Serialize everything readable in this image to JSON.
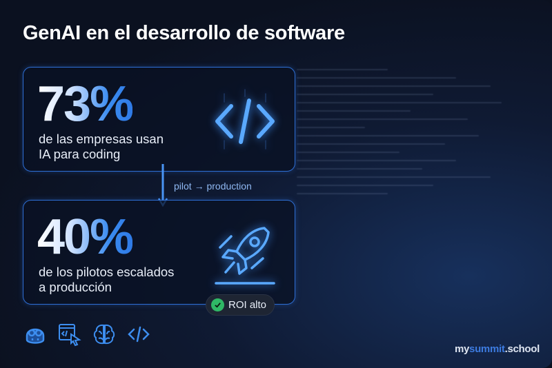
{
  "title": "GenAI en el desarrollo de software",
  "cards": [
    {
      "value": "73%",
      "line1": "de las empresas usan",
      "line2": "IA para coding",
      "icon": "code-brackets-icon"
    },
    {
      "value": "40%",
      "line1": "de los pilotos escalados",
      "line2": "a producción",
      "icon": "rocket-icon"
    }
  ],
  "flow_label": "pilot → production",
  "badge": {
    "label": "ROI alto",
    "icon": "check-circle-icon",
    "color": "#2fb866"
  },
  "tools": [
    "copilot-robot-icon",
    "code-window-cursor-icon",
    "brain-icon",
    "code-icon"
  ],
  "logo": {
    "prefix": "my",
    "accent": "summit",
    "suffix": ".school",
    "accent_color": "#3d7be0"
  },
  "colors": {
    "accent": "#3b8cf0",
    "border": "#2e6fd6",
    "background": "#0b1120"
  }
}
